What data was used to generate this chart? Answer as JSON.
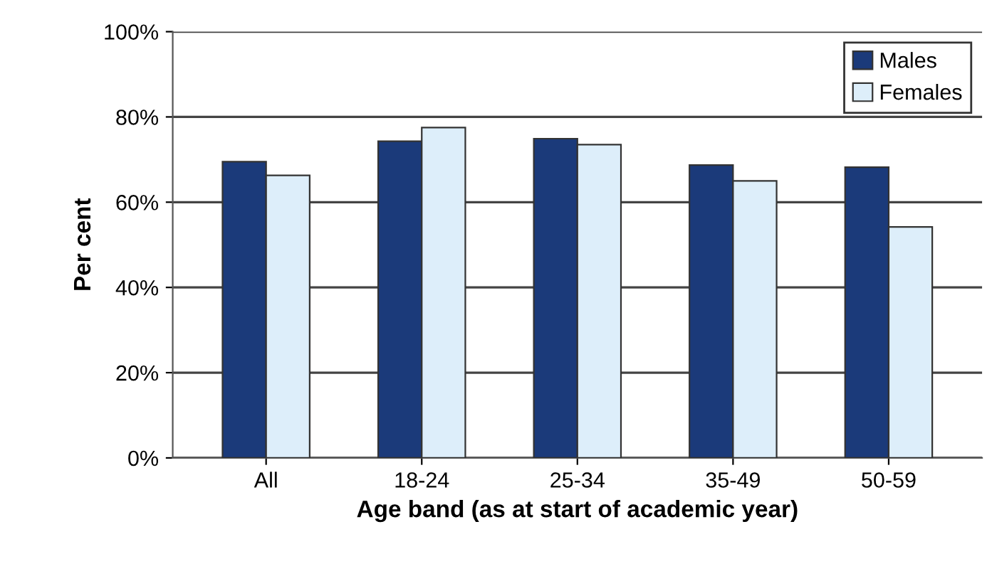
{
  "chart_data": {
    "type": "bar",
    "xlabel": "Age band (as at start of academic year)",
    "ylabel": "Per cent",
    "categories": [
      "All",
      "18-24",
      "25-34",
      "35-49",
      "50-59"
    ],
    "series": [
      {
        "name": "Males",
        "color": "#1b3a7a",
        "values": [
          69.5,
          74.3,
          74.9,
          68.7,
          68.2
        ]
      },
      {
        "name": "Females",
        "color": "#ddeefa",
        "values": [
          66.3,
          77.5,
          73.5,
          65,
          54.2
        ]
      }
    ],
    "ylim": [
      0,
      100
    ],
    "yticks": [
      {
        "value": 0,
        "label": "0%"
      },
      {
        "value": 20,
        "label": "20%"
      },
      {
        "value": 40,
        "label": "40%"
      },
      {
        "value": 60,
        "label": "60%"
      },
      {
        "value": 80,
        "label": "80%"
      },
      {
        "value": 100,
        "label": "100%"
      }
    ],
    "grid": "y",
    "legend": "top right"
  }
}
